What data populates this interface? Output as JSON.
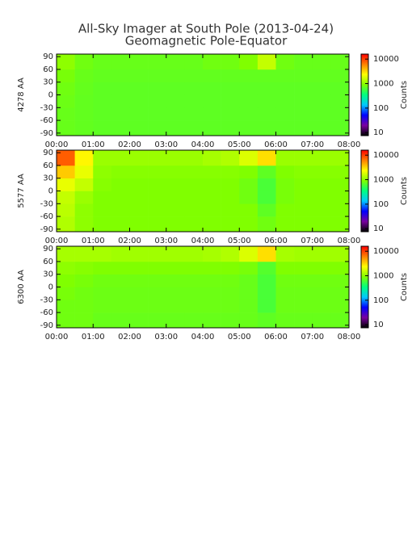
{
  "chart_data": [
    {
      "type": "heatmap",
      "title": "All-Sky Imager at South Pole (2013-04-24)",
      "subtitle": "Geomagnetic Pole-Equator",
      "ylabel": "4278 AA",
      "colorbar_label": "Counts",
      "xlim": [
        0,
        8
      ],
      "xticks": [
        {
          "value": 0,
          "label": "00:00"
        },
        {
          "value": 1,
          "label": "01:00"
        },
        {
          "value": 2,
          "label": "02:00"
        },
        {
          "value": 3,
          "label": "03:00"
        },
        {
          "value": 4,
          "label": "04:00"
        },
        {
          "value": 5,
          "label": "05:00"
        },
        {
          "value": 6,
          "label": "06:00"
        },
        {
          "value": 7,
          "label": "07:00"
        },
        {
          "value": 8,
          "label": "08:00"
        }
      ],
      "ylim": [
        -96,
        96
      ],
      "yticks": [
        -90,
        -60,
        -30,
        0,
        30,
        60,
        90
      ],
      "clim": [
        7.5,
        16000
      ],
      "cticks": [
        10,
        100,
        1000,
        10000
      ],
      "log_color": true,
      "colormap": [
        "#000000",
        "#7a00a0",
        "#0000ff",
        "#00c8ff",
        "#00ff80",
        "#80ff00",
        "#ffff00",
        "#ff8000",
        "#ff0000"
      ],
      "xbins": [
        0,
        0.5,
        1,
        1.5,
        2,
        2.5,
        3,
        3.5,
        4,
        4.5,
        5,
        5.5,
        6,
        6.5,
        7,
        7.5,
        8
      ],
      "ybins": [
        -96,
        -60,
        -30,
        0,
        30,
        60,
        96
      ],
      "values": [
        [
          750,
          720,
          700,
          700,
          700,
          700,
          700,
          700,
          700,
          700,
          700,
          700,
          700,
          700,
          700,
          700
        ],
        [
          750,
          720,
          700,
          700,
          700,
          700,
          700,
          700,
          700,
          700,
          700,
          700,
          700,
          700,
          700,
          700
        ],
        [
          780,
          720,
          700,
          700,
          700,
          700,
          700,
          700,
          700,
          700,
          700,
          700,
          700,
          700,
          700,
          700
        ],
        [
          800,
          730,
          700,
          700,
          700,
          700,
          700,
          700,
          700,
          700,
          700,
          700,
          700,
          700,
          700,
          700
        ],
        [
          850,
          750,
          720,
          720,
          720,
          720,
          720,
          720,
          720,
          720,
          720,
          720,
          720,
          720,
          720,
          720
        ],
        [
          1000,
          800,
          750,
          750,
          750,
          750,
          750,
          750,
          800,
          800,
          900,
          1500,
          800,
          750,
          750,
          750
        ]
      ]
    },
    {
      "type": "heatmap",
      "ylabel": "5577 AA",
      "colorbar_label": "Counts",
      "xlim": [
        0,
        8
      ],
      "xticks": [
        {
          "value": 0,
          "label": "00:00"
        },
        {
          "value": 1,
          "label": "01:00"
        },
        {
          "value": 2,
          "label": "02:00"
        },
        {
          "value": 3,
          "label": "03:00"
        },
        {
          "value": 4,
          "label": "04:00"
        },
        {
          "value": 5,
          "label": "05:00"
        },
        {
          "value": 6,
          "label": "06:00"
        },
        {
          "value": 7,
          "label": "07:00"
        },
        {
          "value": 8,
          "label": "08:00"
        }
      ],
      "ylim": [
        -96,
        96
      ],
      "yticks": [
        -90,
        -60,
        -30,
        0,
        30,
        60,
        90
      ],
      "clim": [
        7.5,
        16000
      ],
      "cticks": [
        10,
        100,
        1000,
        10000
      ],
      "log_color": true,
      "colormap": [
        "#000000",
        "#7a00a0",
        "#0000ff",
        "#00c8ff",
        "#00ff80",
        "#80ff00",
        "#ffff00",
        "#ff8000",
        "#ff0000"
      ],
      "xbins": [
        0,
        0.5,
        1,
        1.5,
        2,
        2.5,
        3,
        3.5,
        4,
        4.5,
        5,
        5.5,
        6,
        6.5,
        7,
        7.5,
        8
      ],
      "ybins": [
        -96,
        -60,
        -30,
        0,
        30,
        60,
        96
      ],
      "values": [
        [
          1300,
          1000,
          900,
          900,
          900,
          900,
          900,
          900,
          900,
          900,
          900,
          800,
          900,
          900,
          900,
          900
        ],
        [
          1400,
          1000,
          900,
          900,
          900,
          900,
          900,
          900,
          900,
          900,
          900,
          700,
          900,
          900,
          900,
          900
        ],
        [
          1500,
          1100,
          900,
          900,
          900,
          900,
          900,
          900,
          900,
          900,
          800,
          600,
          850,
          900,
          900,
          900
        ],
        [
          2000,
          1500,
          950,
          900,
          900,
          900,
          900,
          900,
          900,
          900,
          800,
          600,
          850,
          900,
          900,
          900
        ],
        [
          3500,
          2000,
          1000,
          950,
          950,
          950,
          950,
          950,
          950,
          950,
          900,
          700,
          900,
          950,
          950,
          950
        ],
        [
          8000,
          2500,
          1100,
          1100,
          1100,
          1100,
          1100,
          1100,
          1200,
          1300,
          1800,
          3000,
          1100,
          1100,
          1100,
          1100
        ]
      ]
    },
    {
      "type": "heatmap",
      "ylabel": "6300 AA",
      "colorbar_label": "Counts",
      "xlim": [
        0,
        8
      ],
      "xticks": [
        {
          "value": 0,
          "label": "00:00"
        },
        {
          "value": 1,
          "label": "01:00"
        },
        {
          "value": 2,
          "label": "02:00"
        },
        {
          "value": 3,
          "label": "03:00"
        },
        {
          "value": 4,
          "label": "04:00"
        },
        {
          "value": 5,
          "label": "05:00"
        },
        {
          "value": 6,
          "label": "06:00"
        },
        {
          "value": 7,
          "label": "07:00"
        },
        {
          "value": 8,
          "label": "08:00"
        }
      ],
      "ylim": [
        -96,
        96
      ],
      "yticks": [
        -90,
        -60,
        -30,
        0,
        30,
        60,
        90
      ],
      "clim": [
        7.5,
        16000
      ],
      "cticks": [
        10,
        100,
        1000,
        10000
      ],
      "log_color": true,
      "colormap": [
        "#000000",
        "#7a00a0",
        "#0000ff",
        "#00c8ff",
        "#00ff80",
        "#80ff00",
        "#ffff00",
        "#ff8000",
        "#ff0000"
      ],
      "xbins": [
        0,
        0.5,
        1,
        1.5,
        2,
        2.5,
        3,
        3.5,
        4,
        4.5,
        5,
        5.5,
        6,
        6.5,
        7,
        7.5,
        8
      ],
      "ybins": [
        -96,
        -60,
        -30,
        0,
        30,
        60,
        96
      ],
      "values": [
        [
          800,
          800,
          750,
          750,
          750,
          750,
          750,
          750,
          750,
          750,
          750,
          700,
          750,
          750,
          750,
          750
        ],
        [
          800,
          800,
          780,
          780,
          780,
          780,
          780,
          780,
          780,
          780,
          750,
          600,
          780,
          780,
          780,
          780
        ],
        [
          850,
          800,
          780,
          780,
          780,
          780,
          780,
          780,
          780,
          780,
          750,
          600,
          780,
          780,
          780,
          780
        ],
        [
          900,
          850,
          800,
          800,
          800,
          800,
          800,
          800,
          800,
          800,
          750,
          600,
          800,
          800,
          800,
          800
        ],
        [
          1000,
          950,
          900,
          900,
          900,
          900,
          900,
          900,
          900,
          900,
          850,
          650,
          900,
          900,
          900,
          900
        ],
        [
          1200,
          1200,
          1200,
          1150,
          1150,
          1150,
          1150,
          1150,
          1200,
          1300,
          1800,
          3000,
          1200,
          1150,
          1150,
          1150
        ]
      ]
    }
  ]
}
